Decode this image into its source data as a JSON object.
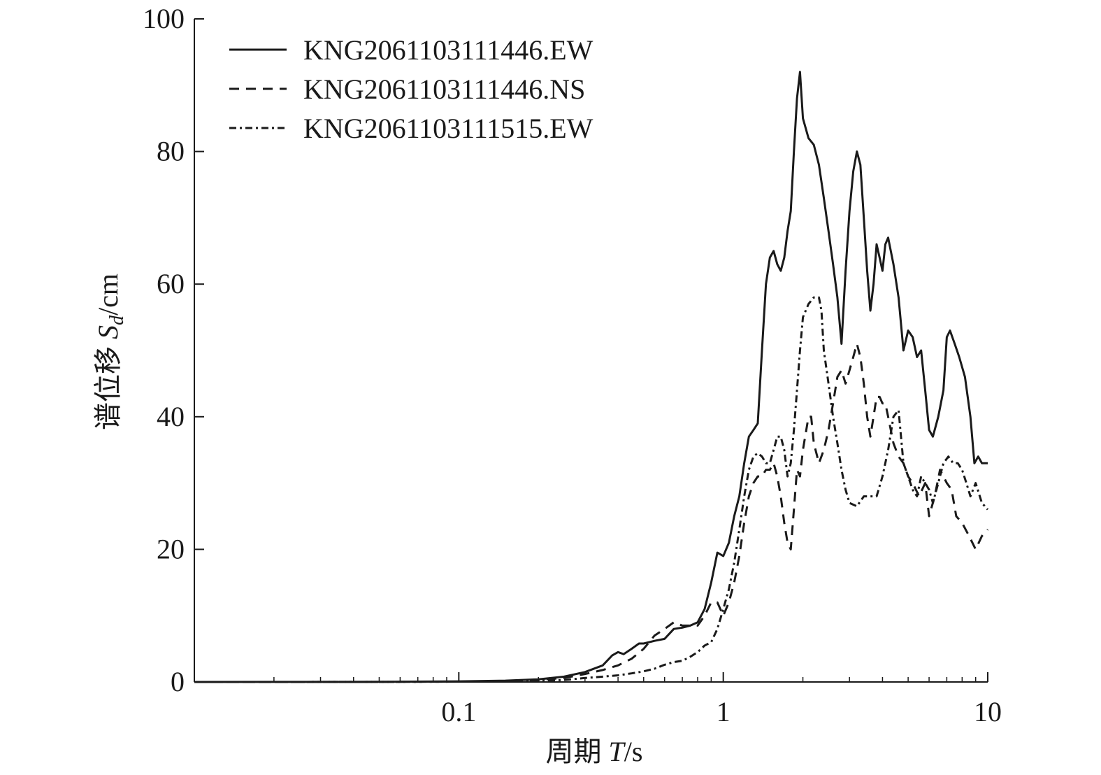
{
  "chart_data": {
    "type": "line",
    "xscale": "log",
    "xlim": [
      0.01,
      10
    ],
    "ylim": [
      0,
      100
    ],
    "xticks": [
      0.1,
      1,
      10
    ],
    "xtick_labels": [
      "0.1",
      "1",
      "10"
    ],
    "yticks": [
      0,
      20,
      40,
      60,
      80,
      100
    ],
    "ytick_labels": [
      "0",
      "20",
      "40",
      "60",
      "80",
      "100"
    ],
    "xlabel": "周期 T/s",
    "ylabel": "谱位移 Sd/cm",
    "grid": false,
    "legend_position": "top-left",
    "series": [
      {
        "name": "KNG2061103111446.EW",
        "style": "solid",
        "color": "#1a1a1a",
        "points": [
          [
            0.01,
            0
          ],
          [
            0.05,
            0.02
          ],
          [
            0.1,
            0.1
          ],
          [
            0.15,
            0.2
          ],
          [
            0.2,
            0.4
          ],
          [
            0.25,
            0.8
          ],
          [
            0.3,
            1.5
          ],
          [
            0.35,
            2.5
          ],
          [
            0.38,
            4
          ],
          [
            0.4,
            4.5
          ],
          [
            0.42,
            4.2
          ],
          [
            0.45,
            5
          ],
          [
            0.48,
            5.8
          ],
          [
            0.5,
            5.8
          ],
          [
            0.55,
            6.2
          ],
          [
            0.6,
            6.5
          ],
          [
            0.65,
            8
          ],
          [
            0.7,
            8.2
          ],
          [
            0.75,
            8.5
          ],
          [
            0.8,
            9
          ],
          [
            0.85,
            11
          ],
          [
            0.9,
            15
          ],
          [
            0.95,
            19.5
          ],
          [
            1.0,
            19
          ],
          [
            1.05,
            21
          ],
          [
            1.1,
            25
          ],
          [
            1.15,
            28
          ],
          [
            1.2,
            33
          ],
          [
            1.25,
            37
          ],
          [
            1.3,
            38
          ],
          [
            1.35,
            39
          ],
          [
            1.4,
            50
          ],
          [
            1.45,
            60
          ],
          [
            1.5,
            64
          ],
          [
            1.55,
            65
          ],
          [
            1.6,
            63
          ],
          [
            1.65,
            62
          ],
          [
            1.7,
            64
          ],
          [
            1.75,
            68
          ],
          [
            1.8,
            71
          ],
          [
            1.85,
            80
          ],
          [
            1.9,
            88
          ],
          [
            1.95,
            92
          ],
          [
            2.0,
            85
          ],
          [
            2.1,
            82
          ],
          [
            2.2,
            81
          ],
          [
            2.3,
            78
          ],
          [
            2.4,
            73
          ],
          [
            2.5,
            68
          ],
          [
            2.6,
            63
          ],
          [
            2.7,
            58
          ],
          [
            2.8,
            51
          ],
          [
            2.9,
            62
          ],
          [
            3.0,
            71
          ],
          [
            3.1,
            77
          ],
          [
            3.2,
            80
          ],
          [
            3.3,
            78
          ],
          [
            3.4,
            70
          ],
          [
            3.5,
            62
          ],
          [
            3.6,
            56
          ],
          [
            3.7,
            60
          ],
          [
            3.8,
            66
          ],
          [
            3.9,
            64
          ],
          [
            4.0,
            62
          ],
          [
            4.1,
            66
          ],
          [
            4.2,
            67
          ],
          [
            4.4,
            63
          ],
          [
            4.6,
            58
          ],
          [
            4.8,
            50
          ],
          [
            5.0,
            53
          ],
          [
            5.2,
            52
          ],
          [
            5.4,
            49
          ],
          [
            5.6,
            50
          ],
          [
            5.8,
            44
          ],
          [
            6.0,
            38
          ],
          [
            6.2,
            37
          ],
          [
            6.5,
            40
          ],
          [
            6.8,
            44
          ],
          [
            7.0,
            52
          ],
          [
            7.2,
            53
          ],
          [
            7.5,
            51
          ],
          [
            7.8,
            49
          ],
          [
            8.2,
            46
          ],
          [
            8.6,
            40
          ],
          [
            8.9,
            33
          ],
          [
            9.2,
            34
          ],
          [
            9.5,
            33
          ],
          [
            10,
            33
          ]
        ]
      },
      {
        "name": "KNG2061103111446.NS",
        "style": "dashed",
        "color": "#1a1a1a",
        "points": [
          [
            0.01,
            0
          ],
          [
            0.05,
            0.01
          ],
          [
            0.1,
            0.05
          ],
          [
            0.15,
            0.1
          ],
          [
            0.2,
            0.3
          ],
          [
            0.25,
            0.6
          ],
          [
            0.3,
            1.2
          ],
          [
            0.35,
            1.8
          ],
          [
            0.4,
            2.5
          ],
          [
            0.45,
            3.5
          ],
          [
            0.5,
            5
          ],
          [
            0.55,
            7
          ],
          [
            0.6,
            8
          ],
          [
            0.65,
            9
          ],
          [
            0.7,
            8.5
          ],
          [
            0.75,
            8.5
          ],
          [
            0.8,
            8.5
          ],
          [
            0.85,
            10
          ],
          [
            0.9,
            12
          ],
          [
            0.95,
            12
          ],
          [
            1.0,
            10
          ],
          [
            1.05,
            12
          ],
          [
            1.1,
            15
          ],
          [
            1.15,
            19
          ],
          [
            1.2,
            24
          ],
          [
            1.25,
            28
          ],
          [
            1.3,
            30
          ],
          [
            1.35,
            31
          ],
          [
            1.4,
            31
          ],
          [
            1.45,
            32
          ],
          [
            1.5,
            32
          ],
          [
            1.55,
            33
          ],
          [
            1.6,
            31
          ],
          [
            1.65,
            28
          ],
          [
            1.7,
            24
          ],
          [
            1.75,
            21
          ],
          [
            1.8,
            20
          ],
          [
            1.85,
            26
          ],
          [
            1.9,
            32
          ],
          [
            1.95,
            31
          ],
          [
            2.0,
            35
          ],
          [
            2.1,
            40
          ],
          [
            2.15,
            40
          ],
          [
            2.2,
            36
          ],
          [
            2.3,
            33
          ],
          [
            2.4,
            35
          ],
          [
            2.5,
            38
          ],
          [
            2.6,
            42
          ],
          [
            2.7,
            46
          ],
          [
            2.8,
            47
          ],
          [
            2.9,
            45
          ],
          [
            3.0,
            47
          ],
          [
            3.1,
            49
          ],
          [
            3.2,
            51
          ],
          [
            3.3,
            49
          ],
          [
            3.4,
            45
          ],
          [
            3.5,
            40
          ],
          [
            3.6,
            37
          ],
          [
            3.7,
            40
          ],
          [
            3.8,
            43
          ],
          [
            3.9,
            43
          ],
          [
            4.0,
            42
          ],
          [
            4.1,
            42
          ],
          [
            4.2,
            40
          ],
          [
            4.4,
            36
          ],
          [
            4.6,
            34
          ],
          [
            4.8,
            33
          ],
          [
            5.0,
            31
          ],
          [
            5.2,
            30
          ],
          [
            5.5,
            28
          ],
          [
            5.8,
            30
          ],
          [
            6.0,
            25
          ],
          [
            6.3,
            28
          ],
          [
            6.6,
            32
          ],
          [
            7.0,
            30
          ],
          [
            7.3,
            29
          ],
          [
            7.6,
            25
          ],
          [
            8.0,
            24
          ],
          [
            8.5,
            22
          ],
          [
            9.0,
            20
          ],
          [
            9.5,
            22
          ],
          [
            10,
            23
          ]
        ]
      },
      {
        "name": "KNG2061103111515.EW",
        "style": "dash-dot",
        "color": "#1a1a1a",
        "points": [
          [
            0.01,
            0
          ],
          [
            0.05,
            0.01
          ],
          [
            0.1,
            0.05
          ],
          [
            0.15,
            0.1
          ],
          [
            0.2,
            0.2
          ],
          [
            0.25,
            0.3
          ],
          [
            0.3,
            0.6
          ],
          [
            0.35,
            0.8
          ],
          [
            0.4,
            1.0
          ],
          [
            0.45,
            1.3
          ],
          [
            0.5,
            1.6
          ],
          [
            0.55,
            2.0
          ],
          [
            0.6,
            2.6
          ],
          [
            0.65,
            3.0
          ],
          [
            0.7,
            3.2
          ],
          [
            0.75,
            3.8
          ],
          [
            0.8,
            4.5
          ],
          [
            0.85,
            5.5
          ],
          [
            0.9,
            6.0
          ],
          [
            0.95,
            8
          ],
          [
            1.0,
            11
          ],
          [
            1.05,
            14
          ],
          [
            1.1,
            18
          ],
          [
            1.15,
            23
          ],
          [
            1.2,
            28
          ],
          [
            1.25,
            32
          ],
          [
            1.3,
            34
          ],
          [
            1.35,
            34.5
          ],
          [
            1.4,
            34
          ],
          [
            1.45,
            33
          ],
          [
            1.5,
            33
          ],
          [
            1.55,
            35
          ],
          [
            1.6,
            37
          ],
          [
            1.65,
            37
          ],
          [
            1.7,
            35
          ],
          [
            1.75,
            31
          ],
          [
            1.8,
            33
          ],
          [
            1.85,
            38
          ],
          [
            1.9,
            44
          ],
          [
            1.95,
            50
          ],
          [
            2.0,
            55
          ],
          [
            2.1,
            57
          ],
          [
            2.2,
            58
          ],
          [
            2.3,
            58
          ],
          [
            2.35,
            56
          ],
          [
            2.4,
            50
          ],
          [
            2.5,
            45
          ],
          [
            2.6,
            40
          ],
          [
            2.7,
            36
          ],
          [
            2.8,
            32
          ],
          [
            2.9,
            29
          ],
          [
            3.0,
            27
          ],
          [
            3.2,
            26.5
          ],
          [
            3.4,
            28
          ],
          [
            3.6,
            28
          ],
          [
            3.8,
            28
          ],
          [
            4.0,
            31
          ],
          [
            4.2,
            35
          ],
          [
            4.4,
            40
          ],
          [
            4.6,
            41
          ],
          [
            4.8,
            33
          ],
          [
            5.0,
            31
          ],
          [
            5.2,
            29
          ],
          [
            5.4,
            28
          ],
          [
            5.6,
            31
          ],
          [
            5.8,
            30
          ],
          [
            6.0,
            29
          ],
          [
            6.2,
            27
          ],
          [
            6.5,
            30
          ],
          [
            6.8,
            33
          ],
          [
            7.1,
            34
          ],
          [
            7.4,
            33
          ],
          [
            7.7,
            33
          ],
          [
            8.0,
            32
          ],
          [
            8.3,
            30
          ],
          [
            8.6,
            28
          ],
          [
            9.0,
            30
          ],
          [
            9.5,
            27
          ],
          [
            10,
            26
          ]
        ]
      }
    ]
  },
  "axes": {
    "xlabel_prefix": "周期 ",
    "xlabel_var": "T",
    "xlabel_unit": "/s",
    "ylabel_prefix": "谱位移 ",
    "ylabel_var": "S",
    "ylabel_sub": "d",
    "ylabel_unit": "/cm"
  }
}
